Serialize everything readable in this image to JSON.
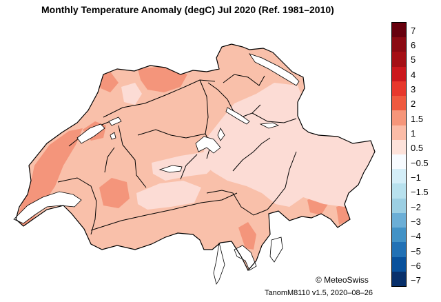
{
  "title": "Monthly Temperature Anomaly (degC) Jul 2020  (Ref. 1981–2010)",
  "legend": {
    "labels": [
      "7",
      "6",
      "5",
      "4",
      "3",
      "2",
      "1.5",
      "1",
      "0.5",
      "−0.5",
      "−1",
      "−1.5",
      "−2",
      "−3",
      "−4",
      "−5",
      "−6",
      "−7"
    ],
    "colors": [
      "#67000d",
      "#8b0a12",
      "#a50f15",
      "#cb181d",
      "#e7382c",
      "#ef5a3f",
      "#f6967a",
      "#fbbca7",
      "#fde2da",
      "#f7fbff",
      "#d4eef8",
      "#b8e1ee",
      "#9ccfe3",
      "#6baed6",
      "#4292c6",
      "#2171b5",
      "#08519c",
      "#08306b"
    ]
  },
  "map_colors": {
    "base": "#f9c0aa",
    "warm": "#f4957b",
    "cool": "#fcdcd5",
    "border": "#000000",
    "lakes": "#ffffff"
  },
  "footer": {
    "copyright": "© MeteoSwiss",
    "version": "TanomM8110 v1.5, 2020–08–26"
  }
}
